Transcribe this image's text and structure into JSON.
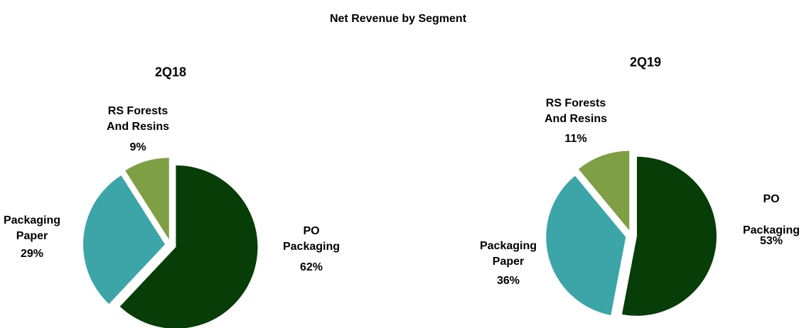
{
  "title": "Net Revenue by Segment",
  "chart_data": [
    {
      "type": "pie",
      "title": "2Q18",
      "categories": [
        "PO\nPackaging",
        "Packaging\nPaper",
        "RS Forests\nAnd Resins"
      ],
      "values": [
        62,
        29,
        9
      ],
      "value_labels": [
        "62%",
        "29%",
        "9%"
      ],
      "colors": [
        "#073d07",
        "#3ba5a8",
        "#7f9f45"
      ]
    },
    {
      "type": "pie",
      "title": "2Q19",
      "categories": [
        "PO\n\nPackaging",
        "Packaging\nPaper",
        "RS Forests\nAnd Resins"
      ],
      "values": [
        53,
        36,
        11
      ],
      "value_labels": [
        "53%",
        "36%",
        "11%"
      ],
      "colors": [
        "#073d07",
        "#3ba5a8",
        "#7f9f45"
      ]
    }
  ]
}
